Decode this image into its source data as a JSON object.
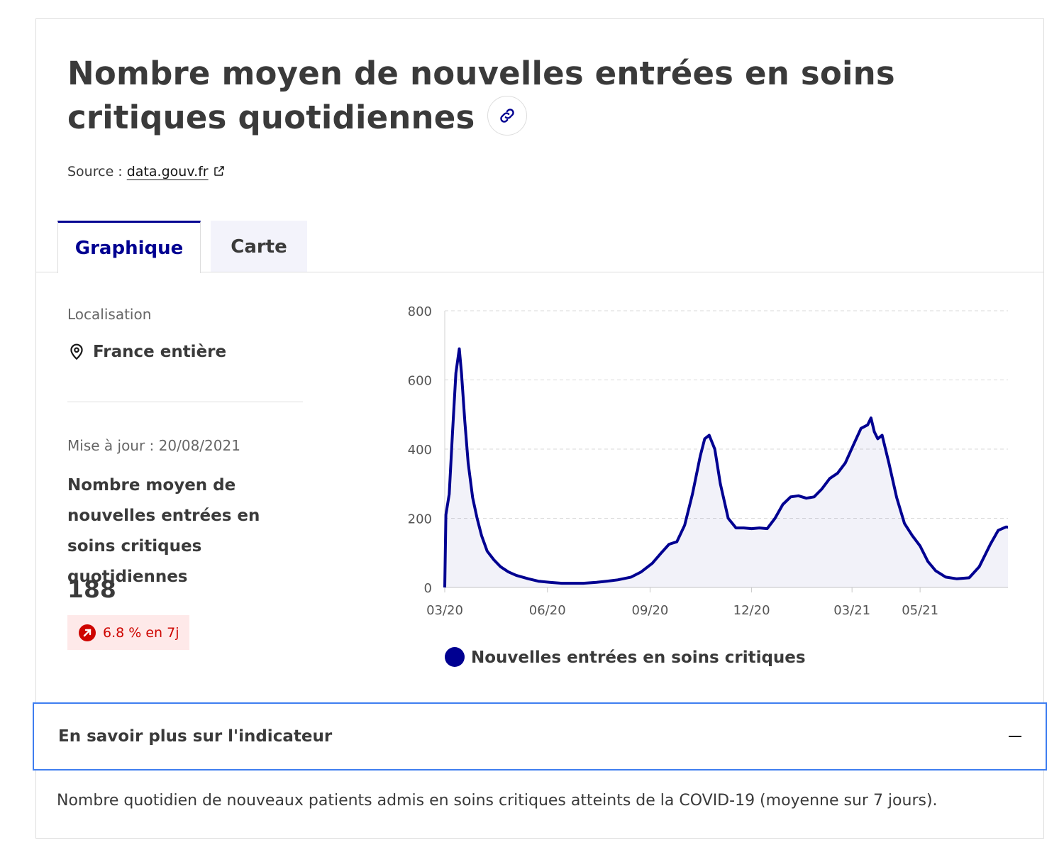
{
  "header": {
    "title": "Nombre moyen de nouvelles entrées en soins critiques quotidiennes",
    "link_icon": "link-icon",
    "source_prefix": "Source :",
    "source_link": "data.gouv.fr",
    "source_icon": "external-link-icon"
  },
  "tabs": [
    {
      "label": "Graphique",
      "active": true
    },
    {
      "label": "Carte",
      "active": false
    }
  ],
  "sidebar": {
    "location_label": "Localisation",
    "location_icon": "map-pin-icon",
    "location_value": "France entière",
    "update": "Mise à jour : 20/08/2021",
    "indicator_name": "Nombre moyen de nouvelles entrées en soins critiques quotidiennes",
    "indicator_value": "188",
    "trend_icon": "arrow-up-right-icon",
    "trend_text": "6.8 % en 7j"
  },
  "colors": {
    "primary": "#000091",
    "trend_bg": "#fee9e9",
    "trend_text": "#ce0500",
    "focus": "#3f7ef0",
    "inactive_tab": "#f3f3fb"
  },
  "chart_data": {
    "type": "area",
    "title": "",
    "xlabel": "",
    "ylabel": "",
    "ylim": [
      0,
      800
    ],
    "yticks": [
      0,
      200,
      400,
      600,
      800
    ],
    "xticks": [
      "03/20",
      "06/20",
      "09/20",
      "12/20",
      "03/21",
      "05/21"
    ],
    "grid": true,
    "legend": {
      "position": "bottom",
      "entries": [
        "Nouvelles entrées en soins critiques"
      ]
    },
    "series": [
      {
        "name": "Nouvelles entrées en soins critiques",
        "color": "#000091",
        "x": [
          "2020-03-18",
          "2020-03-19",
          "2020-03-22",
          "2020-03-25",
          "2020-03-28",
          "2020-03-31",
          "2020-04-02",
          "2020-04-05",
          "2020-04-08",
          "2020-04-12",
          "2020-04-16",
          "2020-04-20",
          "2020-04-25",
          "2020-05-01",
          "2020-05-07",
          "2020-05-14",
          "2020-05-21",
          "2020-06-01",
          "2020-06-10",
          "2020-06-20",
          "2020-07-01",
          "2020-07-10",
          "2020-07-20",
          "2020-08-01",
          "2020-08-10",
          "2020-08-20",
          "2020-09-01",
          "2020-09-10",
          "2020-09-20",
          "2020-09-28",
          "2020-10-05",
          "2020-10-12",
          "2020-10-19",
          "2020-10-26",
          "2020-11-02",
          "2020-11-06",
          "2020-11-10",
          "2020-11-15",
          "2020-11-20",
          "2020-11-27",
          "2020-12-04",
          "2020-12-11",
          "2020-12-18",
          "2020-12-25",
          "2021-01-01",
          "2021-01-08",
          "2021-01-15",
          "2021-01-22",
          "2021-01-29",
          "2021-02-05",
          "2021-02-12",
          "2021-02-19",
          "2021-02-26",
          "2021-03-05",
          "2021-03-12",
          "2021-03-19",
          "2021-03-26",
          "2021-04-01",
          "2021-04-04",
          "2021-04-07",
          "2021-04-10",
          "2021-04-14",
          "2021-04-20",
          "2021-04-27",
          "2021-05-04",
          "2021-05-11",
          "2021-05-18",
          "2021-05-25",
          "2021-06-01",
          "2021-06-10",
          "2021-06-20",
          "2021-07-01",
          "2021-07-10",
          "2021-07-20",
          "2021-07-27",
          "2021-08-03",
          "2021-08-10",
          "2021-08-15",
          "2021-08-20"
        ],
        "values": [
          0,
          210,
          270,
          450,
          620,
          690,
          620,
          480,
          360,
          260,
          200,
          150,
          105,
          80,
          60,
          45,
          35,
          25,
          18,
          15,
          12,
          12,
          12,
          15,
          18,
          22,
          30,
          45,
          70,
          100,
          125,
          132,
          180,
          270,
          380,
          430,
          440,
          400,
          300,
          200,
          172,
          172,
          170,
          172,
          170,
          200,
          240,
          262,
          265,
          258,
          262,
          285,
          315,
          330,
          360,
          410,
          460,
          470,
          490,
          450,
          430,
          440,
          360,
          260,
          185,
          150,
          120,
          75,
          48,
          30,
          25,
          28,
          60,
          125,
          165,
          175,
          172,
          160,
          188
        ]
      }
    ]
  },
  "accordion": {
    "title": "En savoir plus sur l'indicateur",
    "toggle_icon": "minus-icon",
    "content": "Nombre quotidien de nouveaux patients admis en soins critiques atteints de la COVID-19 (moyenne sur 7 jours)."
  }
}
